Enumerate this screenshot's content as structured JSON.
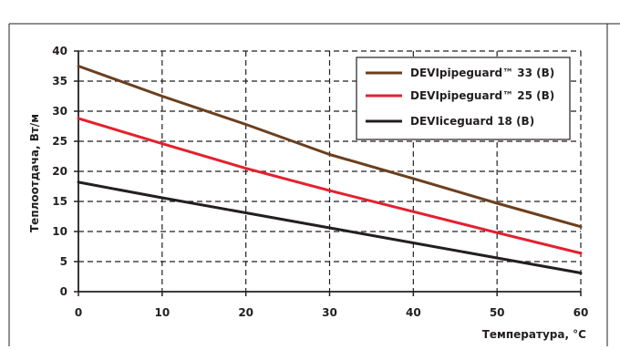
{
  "chart_data": {
    "type": "line",
    "title": "",
    "xlabel": "Температура, °C",
    "ylabel": "Теплоотдача, Вт/м",
    "xlim": [
      0,
      60
    ],
    "ylim": [
      0,
      40
    ],
    "x_ticks": [
      0,
      10,
      20,
      30,
      40,
      50,
      60
    ],
    "y_ticks": [
      0,
      5,
      10,
      15,
      20,
      25,
      30,
      35,
      40
    ],
    "grid": true,
    "grid_style": "dashed",
    "legend_position": "top-right",
    "series": [
      {
        "name": "DEVIpipeguard™ 33 (B)",
        "color": "#6b3f1d",
        "x": [
          0,
          10,
          20,
          30,
          40,
          50,
          60
        ],
        "y": [
          37.5,
          32.5,
          27.8,
          22.8,
          18.8,
          14.7,
          10.8
        ]
      },
      {
        "name": "DEVIpipeguard™ 25 (B)",
        "color": "#e4202d",
        "x": [
          0,
          10,
          20,
          30,
          40,
          50,
          60
        ],
        "y": [
          28.8,
          24.6,
          20.5,
          16.8,
          13.3,
          9.8,
          6.4
        ]
      },
      {
        "name": "DEVIiceguard 18 (B)",
        "color": "#231f20",
        "x": [
          0,
          10,
          20,
          30,
          40,
          50,
          60
        ],
        "y": [
          18.2,
          15.6,
          13.1,
          10.6,
          8.1,
          5.6,
          3.1
        ]
      }
    ]
  }
}
